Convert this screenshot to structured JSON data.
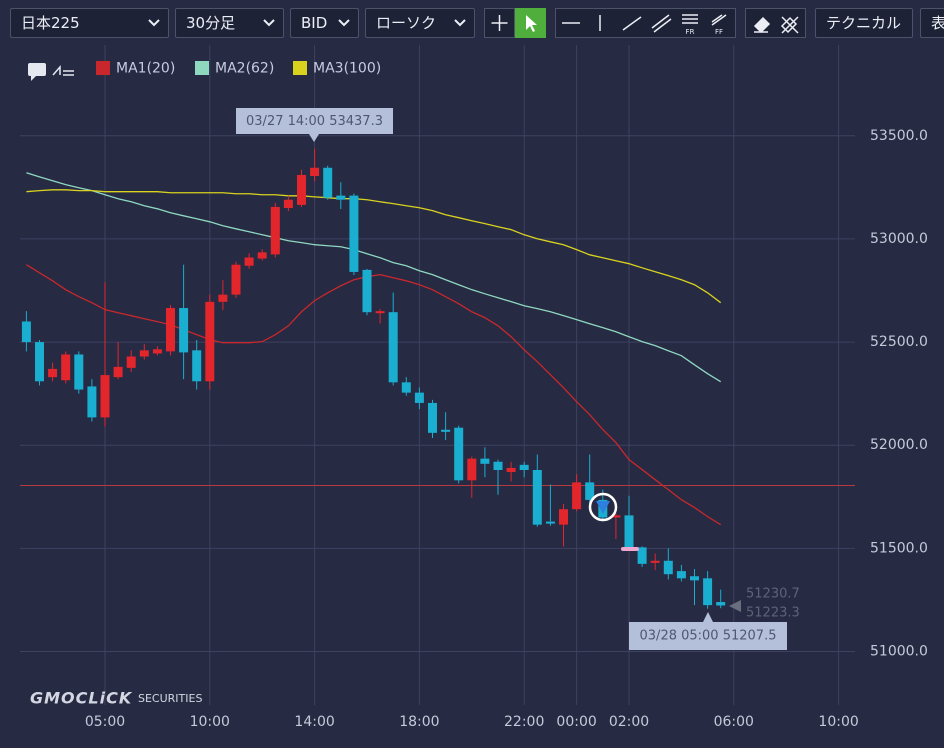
{
  "toolbar": {
    "symbol": "日本225",
    "timeframe": "30分足",
    "price": "BID",
    "chart_style": "ローソク",
    "fr": "FR",
    "ff": "FF",
    "technical": "テクニカル",
    "more": "表"
  },
  "chart_data": {
    "type": "candlestick",
    "categories": [
      null,
      null,
      null,
      null,
      null,
      null,
      "05:00",
      null,
      null,
      null,
      null,
      null,
      null,
      null,
      "10:00",
      null,
      null,
      null,
      null,
      null,
      null,
      null,
      "14:00",
      null,
      null,
      null,
      null,
      null,
      null,
      null,
      "18:00",
      null,
      null,
      null,
      null,
      null,
      null,
      null,
      "22:00",
      null,
      null,
      null,
      "00:00",
      null,
      null,
      null,
      "02:00",
      null,
      null,
      null,
      null,
      null,
      null,
      null,
      "06:00",
      null,
      null,
      null,
      null,
      null,
      null,
      null,
      "10:00"
    ],
    "open": [
      52600,
      52500,
      52330,
      52315,
      52440,
      52285,
      52135,
      52330,
      52375,
      52430,
      52445,
      52455,
      52665,
      52460,
      52310,
      52695,
      52730,
      52870,
      52905,
      52925,
      53150,
      53165,
      53305,
      53345,
      53210,
      53210,
      52850,
      52640,
      52645,
      52305,
      52255,
      52205,
      52075,
      52085,
      51830,
      51935,
      51920,
      51870,
      51905,
      51880,
      51630,
      51615,
      51690,
      51820,
      51735,
      51650,
      51660,
      51505,
      51430,
      51440,
      51390,
      51365,
      51355,
      51240,
      null,
      null,
      null,
      null,
      null,
      null,
      null,
      null,
      null
    ],
    "high": [
      52650,
      52510,
      52400,
      52455,
      52455,
      52320,
      52790,
      52500,
      52460,
      52490,
      52480,
      52680,
      52875,
      52510,
      52730,
      52800,
      52890,
      52930,
      52950,
      53175,
      53210,
      53335,
      53437.3,
      53355,
      53275,
      53220,
      52855,
      52660,
      52740,
      52330,
      52280,
      52220,
      52160,
      52095,
      51945,
      51990,
      51930,
      51920,
      51920,
      51955,
      51810,
      51715,
      51860,
      51955,
      51785,
      51670,
      51755,
      51510,
      51475,
      51500,
      51420,
      51400,
      51390,
      51300,
      null,
      null,
      null,
      null,
      null,
      null,
      null,
      null,
      null
    ],
    "low": [
      52455,
      52290,
      52310,
      52300,
      52250,
      52115,
      52090,
      52320,
      52355,
      52415,
      52435,
      52435,
      52320,
      52270,
      52270,
      52655,
      52715,
      52855,
      52895,
      52910,
      53135,
      53155,
      53280,
      53190,
      53145,
      52825,
      52630,
      52590,
      52290,
      52240,
      52175,
      52035,
      52025,
      51815,
      51745,
      51845,
      51760,
      51825,
      51845,
      51605,
      51610,
      51510,
      51680,
      51690,
      51630,
      51545,
      51495,
      51410,
      51395,
      51350,
      51340,
      51225,
      51207.5,
      51210,
      null,
      null,
      null,
      null,
      null,
      null,
      null,
      null,
      null
    ],
    "close": [
      52500,
      52310,
      52370,
      52440,
      52270,
      52135,
      52340,
      52380,
      52430,
      52460,
      52465,
      52665,
      52450,
      52310,
      52695,
      52730,
      52875,
      52910,
      52935,
      53155,
      53190,
      53310,
      53345,
      53200,
      53190,
      52840,
      52645,
      52650,
      52305,
      52255,
      52205,
      52060,
      52065,
      51830,
      51935,
      51910,
      51880,
      51890,
      51880,
      51615,
      51620,
      51690,
      51820,
      51735,
      51650,
      51660,
      51505,
      51425,
      51440,
      51375,
      51355,
      51345,
      51225,
      51223.3,
      null,
      null,
      null,
      null,
      null,
      null,
      null,
      null,
      null
    ],
    "up_color": "#e3262b",
    "down_color": "#1aaed0",
    "series": [
      {
        "name": "MA1(20)",
        "color": "#c8282c",
        "values": [
          52875,
          52836,
          52797,
          52754,
          52720,
          52691,
          52657,
          52642,
          52628,
          52613,
          52599,
          52584,
          52560,
          52536,
          52512,
          52497,
          52497,
          52497,
          52502,
          52536,
          52579,
          52647,
          52701,
          52739,
          52773,
          52802,
          52817,
          52827,
          52812,
          52797,
          52778,
          52754,
          52720,
          52686,
          52647,
          52618,
          52579,
          52526,
          52463,
          52405,
          52342,
          52279,
          52211,
          52148,
          52076,
          52013,
          51930,
          51882,
          51833,
          51785,
          51736,
          51698,
          51654,
          51615,
          null,
          null,
          null,
          null,
          null,
          null,
          null,
          null,
          null
        ]
      },
      {
        "name": "MA2(62)",
        "color": "#8fd8c0",
        "values": [
          53321,
          53301,
          53282,
          53263,
          53248,
          53234,
          53214,
          53195,
          53180,
          53161,
          53146,
          53127,
          53112,
          53098,
          53083,
          53064,
          53049,
          53035,
          53020,
          53006,
          52991,
          52982,
          52972,
          52967,
          52962,
          52948,
          52928,
          52909,
          52885,
          52870,
          52846,
          52827,
          52802,
          52778,
          52754,
          52734,
          52715,
          52696,
          52676,
          52662,
          52647,
          52628,
          52609,
          52589,
          52570,
          52550,
          52526,
          52502,
          52483,
          52458,
          52434,
          52390,
          52347,
          52308,
          null,
          null,
          null,
          null,
          null,
          null,
          null,
          null,
          null
        ]
      },
      {
        "name": "MA3(100)",
        "color": "#d9d21e",
        "values": [
          53229,
          53234,
          53238,
          53238,
          53234,
          53234,
          53229,
          53229,
          53229,
          53229,
          53229,
          53224,
          53224,
          53224,
          53224,
          53224,
          53219,
          53219,
          53214,
          53214,
          53209,
          53209,
          53204,
          53200,
          53195,
          53195,
          53190,
          53180,
          53171,
          53161,
          53151,
          53137,
          53117,
          53103,
          53088,
          53074,
          53059,
          53045,
          53020,
          53001,
          52986,
          52972,
          52948,
          52923,
          52909,
          52894,
          52880,
          52860,
          52841,
          52822,
          52802,
          52778,
          52739,
          52691,
          null,
          null,
          null,
          null,
          null,
          null,
          null,
          null,
          null
        ]
      }
    ],
    "hline": {
      "value": 51805,
      "color": "#b53a3e"
    },
    "ylim": [
      50770,
      53940
    ],
    "yticks": [
      {
        "value": 51000,
        "label": "51000.0"
      },
      {
        "value": 51500,
        "label": "51500.0"
      },
      {
        "value": 52000,
        "label": "52000.0"
      },
      {
        "value": 52500,
        "label": "52500.0"
      },
      {
        "value": 53000,
        "label": "53000.0"
      },
      {
        "value": 53500,
        "label": "53500.0"
      }
    ],
    "grid": true,
    "high_label": "03/27 14:00 53437.3",
    "low_label": "03/28 05:00 51207.5",
    "price_labels": [
      "51230.7",
      "51223.3"
    ],
    "brand": "GMOCLiCK",
    "brand_sub": "SECURITIES"
  }
}
